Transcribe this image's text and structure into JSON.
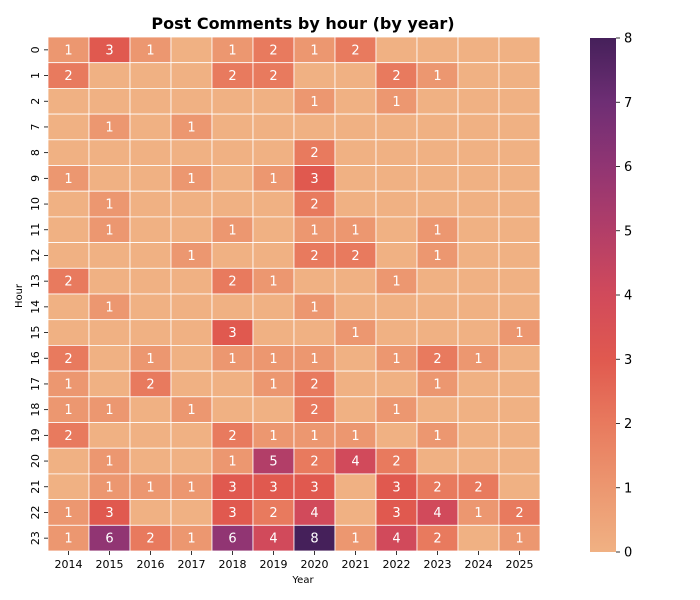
{
  "chart_data": {
    "type": "heatmap",
    "title": "Post Comments by hour (by year)",
    "xlabel": "Year",
    "ylabel": "Hour",
    "x_categories": [
      "2014",
      "2015",
      "2016",
      "2017",
      "2018",
      "2019",
      "2020",
      "2021",
      "2022",
      "2023",
      "2024",
      "2025"
    ],
    "y_categories": [
      "0",
      "1",
      "2",
      "7",
      "8",
      "9",
      "10",
      "11",
      "12",
      "13",
      "14",
      "15",
      "16",
      "17",
      "18",
      "19",
      "20",
      "21",
      "22",
      "23"
    ],
    "values": [
      [
        1,
        3,
        1,
        0,
        1,
        2,
        1,
        2,
        0,
        0,
        0,
        0
      ],
      [
        2,
        0,
        0,
        0,
        2,
        2,
        0,
        0,
        2,
        1,
        0,
        0
      ],
      [
        0,
        0,
        0,
        0,
        0,
        0,
        1,
        0,
        1,
        0,
        0,
        0
      ],
      [
        0,
        1,
        0,
        1,
        0,
        0,
        0,
        0,
        0,
        0,
        0,
        0
      ],
      [
        0,
        0,
        0,
        0,
        0,
        0,
        2,
        0,
        0,
        0,
        0,
        0
      ],
      [
        1,
        0,
        0,
        1,
        0,
        1,
        3,
        0,
        0,
        0,
        0,
        0
      ],
      [
        0,
        1,
        0,
        0,
        0,
        0,
        2,
        0,
        0,
        0,
        0,
        0
      ],
      [
        0,
        1,
        0,
        0,
        1,
        0,
        1,
        1,
        0,
        1,
        0,
        0
      ],
      [
        0,
        0,
        0,
        1,
        0,
        0,
        2,
        2,
        0,
        1,
        0,
        0
      ],
      [
        2,
        0,
        0,
        0,
        2,
        1,
        0,
        0,
        1,
        0,
        0,
        0
      ],
      [
        0,
        1,
        0,
        0,
        0,
        0,
        1,
        0,
        0,
        0,
        0,
        0
      ],
      [
        0,
        0,
        0,
        0,
        3,
        0,
        0,
        1,
        0,
        0,
        0,
        1
      ],
      [
        2,
        0,
        1,
        0,
        1,
        1,
        1,
        0,
        1,
        2,
        1,
        0
      ],
      [
        1,
        0,
        2,
        0,
        0,
        1,
        2,
        0,
        0,
        1,
        0,
        0
      ],
      [
        1,
        1,
        0,
        1,
        0,
        0,
        2,
        0,
        1,
        0,
        0,
        0
      ],
      [
        2,
        0,
        0,
        0,
        2,
        1,
        1,
        1,
        0,
        1,
        0,
        0
      ],
      [
        0,
        1,
        0,
        0,
        1,
        5,
        2,
        4,
        2,
        0,
        0,
        0
      ],
      [
        0,
        1,
        1,
        1,
        3,
        3,
        3,
        0,
        3,
        2,
        2,
        0
      ],
      [
        1,
        3,
        0,
        0,
        3,
        2,
        4,
        0,
        3,
        4,
        1,
        2
      ],
      [
        1,
        6,
        2,
        1,
        6,
        4,
        8,
        1,
        4,
        2,
        0,
        1
      ]
    ],
    "colorbar": {
      "min": 0,
      "max": 8,
      "ticks": [
        0,
        1,
        2,
        3,
        4,
        5,
        6,
        7,
        8
      ]
    },
    "colormap": [
      "#f0b183",
      "#ec9770",
      "#e87a5e",
      "#e0594f",
      "#d14a5b",
      "#b23e68",
      "#913573",
      "#6e2e74",
      "#45205a"
    ],
    "show_zero_labels": false,
    "grid": false
  }
}
